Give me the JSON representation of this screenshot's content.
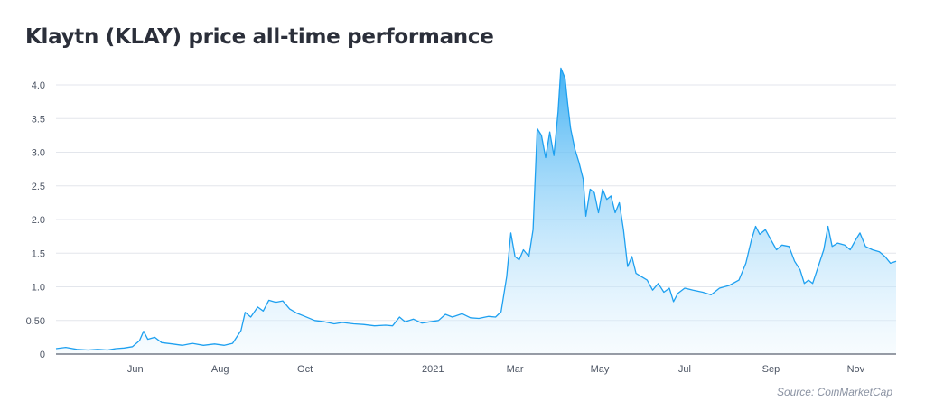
{
  "title": "Klaytn (KLAY) price all-time performance",
  "source": "Source: CoinMarketCap",
  "colors": {
    "line": "#1ea0f0",
    "fill_top": "#3aaef3",
    "fill_bottom": "#e9f6fe",
    "grid": "#e3e6ec",
    "axis": "#5a6270"
  },
  "chart_data": {
    "type": "area",
    "title": "Klaytn (KLAY) price all-time performance",
    "xlabel": "",
    "ylabel": "",
    "ylim": [
      0,
      4.3
    ],
    "grid": true,
    "yticks": [
      {
        "value": 0,
        "label": "0"
      },
      {
        "value": 0.5,
        "label": "0.50"
      },
      {
        "value": 1.0,
        "label": "1.0"
      },
      {
        "value": 1.5,
        "label": "1.5"
      },
      {
        "value": 2.0,
        "label": "2.0"
      },
      {
        "value": 2.5,
        "label": "2.5"
      },
      {
        "value": 3.0,
        "label": "3.0"
      },
      {
        "value": 3.5,
        "label": "3.5"
      },
      {
        "value": 4.0,
        "label": "4.0"
      }
    ],
    "xlim": [
      "2020-04-05",
      "2021-11-30"
    ],
    "xticks": [
      {
        "date": "2020-06-01",
        "label": "Jun"
      },
      {
        "date": "2020-08-01",
        "label": "Aug"
      },
      {
        "date": "2020-10-01",
        "label": "Oct"
      },
      {
        "date": "2021-01-01",
        "label": "2021"
      },
      {
        "date": "2021-03-01",
        "label": "Mar"
      },
      {
        "date": "2021-05-01",
        "label": "May"
      },
      {
        "date": "2021-07-01",
        "label": "Jul"
      },
      {
        "date": "2021-09-01",
        "label": "Sep"
      },
      {
        "date": "2021-11-01",
        "label": "Nov"
      }
    ],
    "series": [
      {
        "points": [
          [
            "2020-04-05",
            0.08
          ],
          [
            "2020-04-12",
            0.1
          ],
          [
            "2020-04-20",
            0.07
          ],
          [
            "2020-04-28",
            0.06
          ],
          [
            "2020-05-05",
            0.07
          ],
          [
            "2020-05-12",
            0.06
          ],
          [
            "2020-05-18",
            0.08
          ],
          [
            "2020-05-24",
            0.09
          ],
          [
            "2020-05-30",
            0.11
          ],
          [
            "2020-06-04",
            0.2
          ],
          [
            "2020-06-07",
            0.34
          ],
          [
            "2020-06-10",
            0.22
          ],
          [
            "2020-06-15",
            0.25
          ],
          [
            "2020-06-20",
            0.17
          ],
          [
            "2020-06-28",
            0.15
          ],
          [
            "2020-07-05",
            0.13
          ],
          [
            "2020-07-12",
            0.16
          ],
          [
            "2020-07-20",
            0.13
          ],
          [
            "2020-07-28",
            0.15
          ],
          [
            "2020-08-04",
            0.13
          ],
          [
            "2020-08-10",
            0.16
          ],
          [
            "2020-08-16",
            0.35
          ],
          [
            "2020-08-19",
            0.62
          ],
          [
            "2020-08-23",
            0.55
          ],
          [
            "2020-08-28",
            0.7
          ],
          [
            "2020-09-01",
            0.64
          ],
          [
            "2020-09-05",
            0.8
          ],
          [
            "2020-09-10",
            0.77
          ],
          [
            "2020-09-15",
            0.79
          ],
          [
            "2020-09-20",
            0.67
          ],
          [
            "2020-09-25",
            0.61
          ],
          [
            "2020-10-01",
            0.56
          ],
          [
            "2020-10-08",
            0.5
          ],
          [
            "2020-10-15",
            0.48
          ],
          [
            "2020-10-22",
            0.45
          ],
          [
            "2020-10-28",
            0.47
          ],
          [
            "2020-11-05",
            0.45
          ],
          [
            "2020-11-12",
            0.44
          ],
          [
            "2020-11-20",
            0.42
          ],
          [
            "2020-11-28",
            0.43
          ],
          [
            "2020-12-03",
            0.42
          ],
          [
            "2020-12-08",
            0.55
          ],
          [
            "2020-12-12",
            0.48
          ],
          [
            "2020-12-18",
            0.52
          ],
          [
            "2020-12-24",
            0.46
          ],
          [
            "2020-12-30",
            0.48
          ],
          [
            "2021-01-05",
            0.5
          ],
          [
            "2021-01-10",
            0.59
          ],
          [
            "2021-01-15",
            0.55
          ],
          [
            "2021-01-22",
            0.6
          ],
          [
            "2021-01-28",
            0.54
          ],
          [
            "2021-02-03",
            0.53
          ],
          [
            "2021-02-10",
            0.56
          ],
          [
            "2021-02-15",
            0.55
          ],
          [
            "2021-02-19",
            0.63
          ],
          [
            "2021-02-23",
            1.15
          ],
          [
            "2021-02-26",
            1.8
          ],
          [
            "2021-03-01",
            1.45
          ],
          [
            "2021-03-04",
            1.4
          ],
          [
            "2021-03-07",
            1.55
          ],
          [
            "2021-03-11",
            1.45
          ],
          [
            "2021-03-14",
            1.85
          ],
          [
            "2021-03-17",
            3.35
          ],
          [
            "2021-03-20",
            3.25
          ],
          [
            "2021-03-23",
            2.92
          ],
          [
            "2021-03-26",
            3.3
          ],
          [
            "2021-03-29",
            2.95
          ],
          [
            "2021-04-01",
            3.6
          ],
          [
            "2021-04-03",
            4.25
          ],
          [
            "2021-04-06",
            4.1
          ],
          [
            "2021-04-08",
            3.7
          ],
          [
            "2021-04-10",
            3.35
          ],
          [
            "2021-04-13",
            3.05
          ],
          [
            "2021-04-16",
            2.85
          ],
          [
            "2021-04-19",
            2.6
          ],
          [
            "2021-04-21",
            2.05
          ],
          [
            "2021-04-24",
            2.45
          ],
          [
            "2021-04-27",
            2.4
          ],
          [
            "2021-04-30",
            2.1
          ],
          [
            "2021-05-03",
            2.45
          ],
          [
            "2021-05-06",
            2.3
          ],
          [
            "2021-05-09",
            2.35
          ],
          [
            "2021-05-12",
            2.1
          ],
          [
            "2021-05-15",
            2.25
          ],
          [
            "2021-05-18",
            1.85
          ],
          [
            "2021-05-21",
            1.3
          ],
          [
            "2021-05-24",
            1.45
          ],
          [
            "2021-05-27",
            1.2
          ],
          [
            "2021-05-31",
            1.15
          ],
          [
            "2021-06-04",
            1.1
          ],
          [
            "2021-06-08",
            0.95
          ],
          [
            "2021-06-12",
            1.05
          ],
          [
            "2021-06-16",
            0.92
          ],
          [
            "2021-06-20",
            0.98
          ],
          [
            "2021-06-23",
            0.78
          ],
          [
            "2021-06-26",
            0.9
          ],
          [
            "2021-07-01",
            0.98
          ],
          [
            "2021-07-07",
            0.95
          ],
          [
            "2021-07-14",
            0.92
          ],
          [
            "2021-07-20",
            0.88
          ],
          [
            "2021-07-26",
            0.98
          ],
          [
            "2021-08-02",
            1.02
          ],
          [
            "2021-08-09",
            1.1
          ],
          [
            "2021-08-14",
            1.35
          ],
          [
            "2021-08-18",
            1.7
          ],
          [
            "2021-08-21",
            1.9
          ],
          [
            "2021-08-24",
            1.78
          ],
          [
            "2021-08-28",
            1.85
          ],
          [
            "2021-09-01",
            1.7
          ],
          [
            "2021-09-05",
            1.55
          ],
          [
            "2021-09-09",
            1.62
          ],
          [
            "2021-09-14",
            1.6
          ],
          [
            "2021-09-18",
            1.38
          ],
          [
            "2021-09-22",
            1.25
          ],
          [
            "2021-09-25",
            1.05
          ],
          [
            "2021-09-28",
            1.1
          ],
          [
            "2021-10-01",
            1.05
          ],
          [
            "2021-10-05",
            1.3
          ],
          [
            "2021-10-09",
            1.55
          ],
          [
            "2021-10-12",
            1.9
          ],
          [
            "2021-10-15",
            1.6
          ],
          [
            "2021-10-19",
            1.65
          ],
          [
            "2021-10-24",
            1.62
          ],
          [
            "2021-10-28",
            1.55
          ],
          [
            "2021-11-01",
            1.7
          ],
          [
            "2021-11-04",
            1.8
          ],
          [
            "2021-11-08",
            1.6
          ],
          [
            "2021-11-13",
            1.55
          ],
          [
            "2021-11-18",
            1.52
          ],
          [
            "2021-11-22",
            1.45
          ],
          [
            "2021-11-26",
            1.35
          ],
          [
            "2021-11-30",
            1.38
          ]
        ]
      }
    ]
  }
}
